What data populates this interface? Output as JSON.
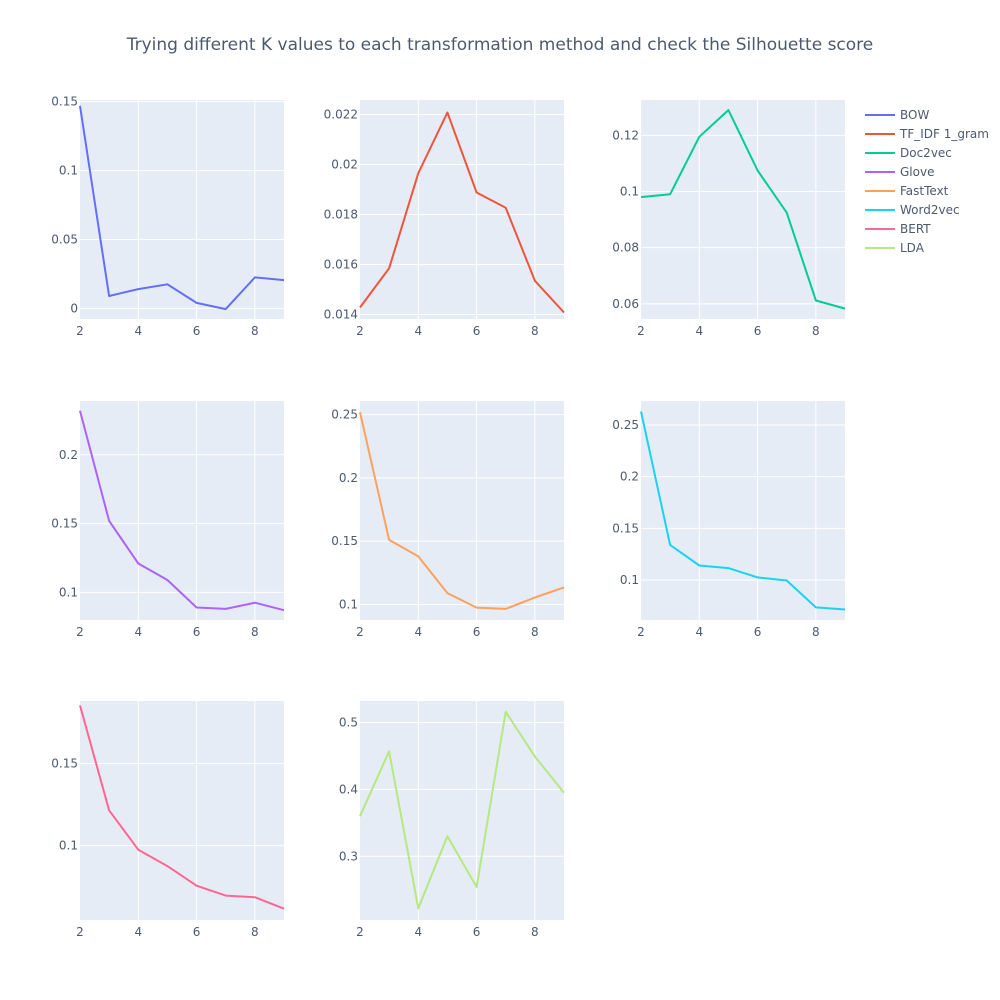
{
  "title": "Trying different K values to each transformation method and check the Silhouette score",
  "colors": {
    "plot_bg": "#e5ecf6",
    "grid": "#ffffff",
    "text": "#4d5a6e"
  },
  "chart_data": [
    {
      "type": "line",
      "name": "BOW",
      "color": "#636efa",
      "x": [
        2,
        3,
        4,
        5,
        6,
        7,
        8,
        9
      ],
      "y": [
        0.147,
        0.009,
        0.014,
        0.0175,
        0.004,
        -0.0005,
        0.0225,
        0.0205
      ],
      "xlim": [
        2,
        9
      ],
      "ylim": [
        -0.0077,
        0.1512
      ],
      "xticks": [
        2,
        4,
        6,
        8
      ],
      "xtick_labels": [
        "2",
        "4",
        "6",
        "8"
      ],
      "yticks": [
        0,
        0.05,
        0.1,
        0.15
      ],
      "ytick_labels": [
        "0",
        "0.05",
        "0.1",
        "0.15"
      ]
    },
    {
      "type": "line",
      "name": "TF_IDF 1_gram",
      "color": "#ef553b",
      "x": [
        2,
        3,
        4,
        5,
        6,
        7,
        8,
        9
      ],
      "y": [
        0.01428,
        0.01585,
        0.01965,
        0.02208,
        0.01888,
        0.01827,
        0.01535,
        0.01408
      ],
      "xlim": [
        2,
        9
      ],
      "ylim": [
        0.01382,
        0.02258
      ],
      "xticks": [
        2,
        4,
        6,
        8
      ],
      "xtick_labels": [
        "2",
        "4",
        "6",
        "8"
      ],
      "yticks": [
        0.014,
        0.016,
        0.018,
        0.02,
        0.022
      ],
      "ytick_labels": [
        "0.014",
        "0.016",
        "0.018",
        "0.02",
        "0.022"
      ]
    },
    {
      "type": "line",
      "name": "Doc2vec",
      "color": "#00cc96",
      "x": [
        2,
        3,
        4,
        5,
        6,
        7,
        8,
        9
      ],
      "y": [
        0.098,
        0.099,
        0.1195,
        0.129,
        0.1075,
        0.0925,
        0.0612,
        0.0583
      ],
      "xlim": [
        2,
        9
      ],
      "ylim": [
        0.0546,
        0.1326
      ],
      "xticks": [
        2,
        4,
        6,
        8
      ],
      "xtick_labels": [
        "2",
        "4",
        "6",
        "8"
      ],
      "yticks": [
        0.06,
        0.08,
        0.1,
        0.12
      ],
      "ytick_labels": [
        "0.06",
        "0.08",
        "0.1",
        "0.12"
      ]
    },
    {
      "type": "line",
      "name": "Glove",
      "color": "#ab63fa",
      "x": [
        2,
        3,
        4,
        5,
        6,
        7,
        8,
        9
      ],
      "y": [
        0.232,
        0.152,
        0.121,
        0.109,
        0.089,
        0.088,
        0.0925,
        0.087
      ],
      "xlim": [
        2,
        9
      ],
      "ylim": [
        0.0799,
        0.2391
      ],
      "xticks": [
        2,
        4,
        6,
        8
      ],
      "xtick_labels": [
        "2",
        "4",
        "6",
        "8"
      ],
      "yticks": [
        0.1,
        0.15,
        0.2
      ],
      "ytick_labels": [
        "0.1",
        "0.15",
        "0.2"
      ]
    },
    {
      "type": "line",
      "name": "FastText",
      "color": "#ffa15a",
      "x": [
        2,
        3,
        4,
        5,
        6,
        7,
        8,
        9
      ],
      "y": [
        0.252,
        0.151,
        0.138,
        0.109,
        0.0975,
        0.0965,
        0.1055,
        0.1135
      ],
      "xlim": [
        2,
        9
      ],
      "ylim": [
        0.0877,
        0.2608
      ],
      "xticks": [
        2,
        4,
        6,
        8
      ],
      "xtick_labels": [
        "2",
        "4",
        "6",
        "8"
      ],
      "yticks": [
        0.1,
        0.15,
        0.2,
        0.25
      ],
      "ytick_labels": [
        "0.1",
        "0.15",
        "0.2",
        "0.25"
      ]
    },
    {
      "type": "line",
      "name": "Word2vec",
      "color": "#19d3f3",
      "x": [
        2,
        3,
        4,
        5,
        6,
        7,
        8,
        9
      ],
      "y": [
        0.263,
        0.134,
        0.114,
        0.1115,
        0.1025,
        0.0995,
        0.0735,
        0.0715
      ],
      "xlim": [
        2,
        9
      ],
      "ylim": [
        0.0613,
        0.2732
      ],
      "xticks": [
        2,
        4,
        6,
        8
      ],
      "xtick_labels": [
        "2",
        "4",
        "6",
        "8"
      ],
      "yticks": [
        0.1,
        0.15,
        0.2,
        0.25
      ],
      "ytick_labels": [
        "0.1",
        "0.15",
        "0.2",
        "0.25"
      ]
    },
    {
      "type": "line",
      "name": "BERT",
      "color": "#ff6692",
      "x": [
        2,
        3,
        4,
        5,
        6,
        7,
        8,
        9
      ],
      "y": [
        0.1855,
        0.1215,
        0.0975,
        0.0875,
        0.0755,
        0.0695,
        0.0685,
        0.0615
      ],
      "xlim": [
        2,
        9
      ],
      "ylim": [
        0.0546,
        0.1882
      ],
      "xticks": [
        2,
        4,
        6,
        8
      ],
      "xtick_labels": [
        "2",
        "4",
        "6",
        "8"
      ],
      "yticks": [
        0.1,
        0.15
      ],
      "ytick_labels": [
        "0.1",
        "0.15"
      ]
    },
    {
      "type": "line",
      "name": "LDA",
      "color": "#b6e880",
      "x": [
        2,
        3,
        4,
        5,
        6,
        7,
        8,
        9
      ],
      "y": [
        0.36,
        0.457,
        0.222,
        0.33,
        0.254,
        0.516,
        0.449,
        0.395
      ],
      "xlim": [
        2,
        9
      ],
      "ylim": [
        0.2047,
        0.5322
      ],
      "xticks": [
        2,
        4,
        6,
        8
      ],
      "xtick_labels": [
        "2",
        "4",
        "6",
        "8"
      ],
      "yticks": [
        0.3,
        0.4,
        0.5
      ],
      "ytick_labels": [
        "0.3",
        "0.4",
        "0.5"
      ]
    }
  ]
}
